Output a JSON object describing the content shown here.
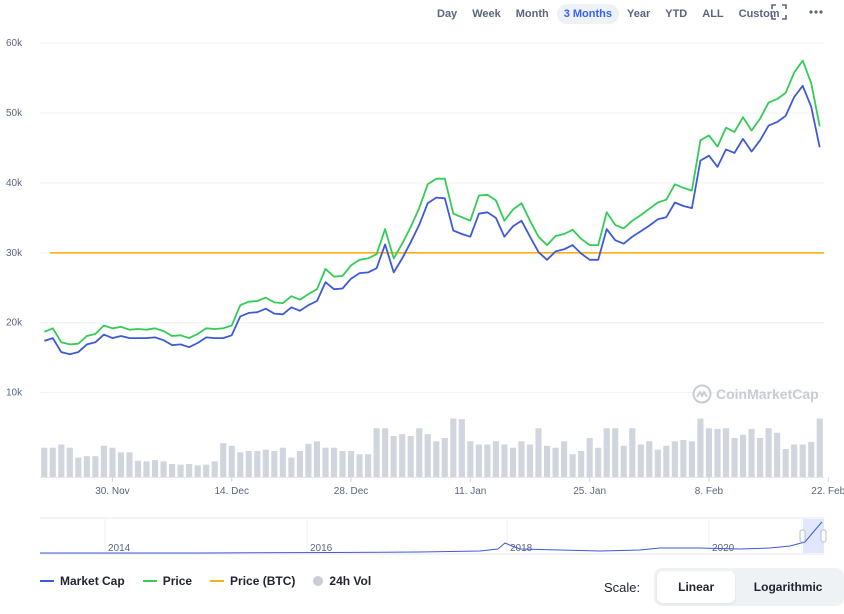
{
  "toolbar": {
    "ranges": [
      "Day",
      "Week",
      "Month",
      "3 Months",
      "YTD",
      "ALL",
      "Custom"
    ],
    "year_label": "Year",
    "active_range": "3 Months"
  },
  "watermark": "CoinMarketCap",
  "legend": {
    "market_cap": "Market Cap",
    "price": "Price",
    "price_btc": "Price (BTC)",
    "vol": "24h Vol"
  },
  "scale": {
    "label": "Scale:",
    "linear": "Linear",
    "log": "Logarithmic",
    "active": "Linear"
  },
  "colors": {
    "market_cap": "#3f5ad8",
    "price": "#33cc55",
    "price_btc": "#f7b01a",
    "volume": "#d1d5dd",
    "grid": "#eff2f5"
  },
  "chart_data": {
    "type": "line",
    "ylim": [
      0,
      65000
    ],
    "y_ticks": [
      "10k",
      "20k",
      "30k",
      "40k",
      "50k",
      "60k"
    ],
    "y_tick_values": [
      10000,
      20000,
      30000,
      40000,
      50000,
      60000
    ],
    "x_ticks": [
      "30. Nov",
      "14. Dec",
      "28. Dec",
      "11. Jan",
      "25. Jan",
      "8. Feb",
      "22. Feb"
    ],
    "x_tick_index": [
      8,
      22,
      36,
      50,
      64,
      78,
      92
    ],
    "series": [
      {
        "name": "Price",
        "values": [
          18700,
          19200,
          17200,
          16900,
          17000,
          18100,
          18400,
          19600,
          19200,
          19400,
          19000,
          19100,
          19000,
          19200,
          18800,
          18100,
          18200,
          17800,
          18400,
          19200,
          19100,
          19200,
          19600,
          22500,
          23000,
          23100,
          23600,
          22900,
          22800,
          23800,
          23300,
          24100,
          24800,
          27700,
          26600,
          26700,
          28200,
          29000,
          29200,
          29800,
          33400,
          29200,
          31300,
          33700,
          36400,
          39800,
          40600,
          40600,
          35600,
          35100,
          34600,
          38200,
          38300,
          37500,
          34600,
          36200,
          37100,
          34600,
          32300,
          31100,
          32400,
          32700,
          33300,
          32000,
          31100,
          31100,
          35800,
          34000,
          33500,
          34600,
          35400,
          36300,
          37200,
          37600,
          39800,
          39300,
          38900,
          46100,
          46800,
          45200,
          47900,
          47300,
          49400,
          47500,
          49200,
          51500,
          52000,
          52900,
          55800,
          57500,
          54300,
          48100
        ]
      },
      {
        "name": "Market Cap",
        "values": [
          17400,
          17800,
          15800,
          15500,
          15800,
          16900,
          17200,
          18300,
          17800,
          18100,
          17800,
          17800,
          17800,
          17900,
          17500,
          16800,
          16900,
          16500,
          17100,
          17900,
          17800,
          17800,
          18200,
          20900,
          21400,
          21500,
          22000,
          21300,
          21200,
          22200,
          21700,
          22500,
          23100,
          25800,
          24800,
          24900,
          26300,
          27100,
          27200,
          27800,
          31200,
          27200,
          29200,
          31500,
          34000,
          37100,
          37900,
          37800,
          33200,
          32700,
          32300,
          35600,
          35800,
          35000,
          32300,
          33800,
          34600,
          32300,
          30100,
          29000,
          30200,
          30500,
          31100,
          29900,
          29000,
          29000,
          33400,
          31800,
          31300,
          32300,
          33100,
          33900,
          34800,
          35100,
          37200,
          36700,
          36400,
          43200,
          43900,
          42300,
          44800,
          44300,
          46300,
          44500,
          46100,
          48200,
          48700,
          49600,
          52300,
          53900,
          50900,
          45100
        ]
      },
      {
        "name": "Price (BTC)",
        "values": [
          30000,
          30000
        ]
      }
    ],
    "volume": {
      "name": "24h Vol",
      "values": [
        45,
        45,
        50,
        45,
        30,
        32,
        32,
        48,
        45,
        38,
        38,
        25,
        24,
        26,
        24,
        20,
        19,
        20,
        18,
        19,
        24,
        52,
        48,
        38,
        40,
        40,
        42,
        40,
        45,
        30,
        40,
        51,
        55,
        45,
        45,
        40,
        40,
        35,
        35,
        75,
        75,
        63,
        66,
        63,
        75,
        66,
        55,
        60,
        90,
        89,
        55,
        50,
        50,
        55,
        50,
        45,
        55,
        50,
        75,
        48,
        45,
        55,
        35,
        40,
        60,
        45,
        75,
        75,
        48,
        75,
        50,
        55,
        42,
        48,
        55,
        57,
        55,
        90,
        75,
        74,
        75,
        60,
        65,
        74,
        60,
        75,
        68,
        43,
        50,
        50,
        54,
        90
      ]
    }
  },
  "navigator": {
    "years": [
      "2014",
      "2016",
      "2018",
      "2020"
    ]
  }
}
